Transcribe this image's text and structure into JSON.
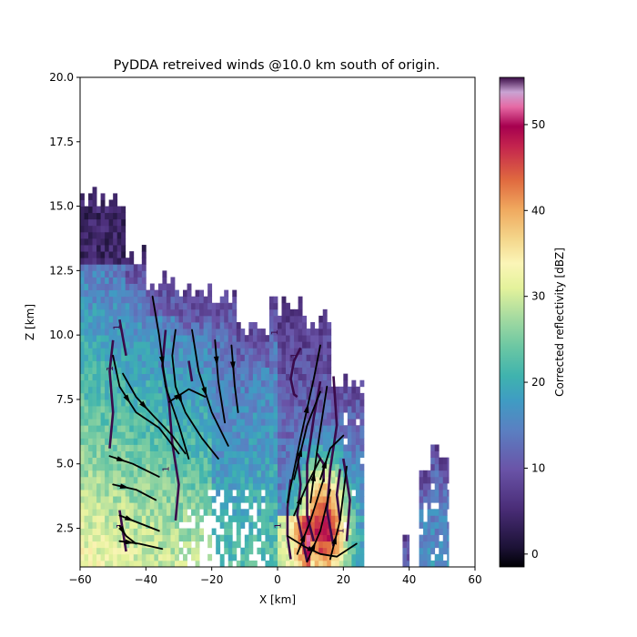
{
  "chart_data": {
    "type": "heatmap",
    "title": "PyDDA retreived winds @10.0 km south of origin.",
    "xlabel": "X [km]",
    "ylabel": "Z [km]",
    "xlim": [
      -60,
      60
    ],
    "ylim": [
      1.0,
      20.0
    ],
    "x_ticks": [
      "−60",
      "−40",
      "−20",
      "0",
      "20",
      "40",
      "60"
    ],
    "y_ticks": [
      "2.5",
      "5.0",
      "7.5",
      "10.0",
      "12.5",
      "15.0",
      "17.5",
      "20.0"
    ],
    "colorbar": {
      "label": "Corrected reflectivity [dBZ]",
      "range": [
        -1.5,
        55.5
      ],
      "ticks": [
        "0",
        "10",
        "20",
        "30",
        "40",
        "50"
      ],
      "colormap": "spectral-reversed"
    },
    "contour_label": "1",
    "echo_columns": [
      {
        "x_range": [
          -60,
          -50
        ],
        "top": 15.2
      },
      {
        "x_range": [
          -50,
          -46
        ],
        "top": 15.2
      },
      {
        "x_range": [
          -46,
          -40
        ],
        "top": 13.0
      },
      {
        "x_range": [
          -40,
          -30
        ],
        "top": 12.0
      },
      {
        "x_range": [
          -30,
          -20
        ],
        "top": 11.5
      },
      {
        "x_range": [
          -20,
          -12
        ],
        "top": 11.3
      },
      {
        "x_range": [
          -12,
          -2
        ],
        "top": 10.2
      },
      {
        "x_range": [
          -2,
          8
        ],
        "top": 11.0
      },
      {
        "x_range": [
          8,
          16
        ],
        "top": 10.6
      },
      {
        "x_range": [
          16,
          26
        ],
        "top": 8.0
      },
      {
        "x_range": [
          38,
          42
        ],
        "top": 2.2
      },
      {
        "x_range": [
          43,
          47
        ],
        "top": 4.6
      },
      {
        "x_range": [
          46,
          52
        ],
        "top": 5.7
      }
    ],
    "streamlines": [
      [
        [
          -51,
          5.3
        ],
        [
          -44,
          5.0
        ],
        [
          -36,
          4.5
        ]
      ],
      [
        [
          -50,
          4.2
        ],
        [
          -43,
          4.0
        ],
        [
          -37,
          3.6
        ]
      ],
      [
        [
          -48,
          3.0
        ],
        [
          -42,
          2.7
        ],
        [
          -36,
          2.4
        ]
      ],
      [
        [
          -48,
          2.0
        ],
        [
          -42,
          1.9
        ],
        [
          -35,
          1.7
        ]
      ],
      [
        [
          -48,
          2.6
        ],
        [
          -46,
          2.2
        ],
        [
          -43,
          1.9
        ]
      ],
      [
        [
          -50,
          9.2
        ],
        [
          -48,
          8.0
        ],
        [
          -43,
          7.0
        ],
        [
          -36,
          6.4
        ],
        [
          -30,
          5.4
        ]
      ],
      [
        [
          -47,
          8.5
        ],
        [
          -43,
          7.6
        ],
        [
          -38,
          6.9
        ],
        [
          -32,
          6.1
        ],
        [
          -28,
          5.4
        ]
      ],
      [
        [
          -38,
          11.5
        ],
        [
          -36,
          10.0
        ],
        [
          -34,
          8.0
        ],
        [
          -30,
          6.5
        ],
        [
          -27,
          5.2
        ]
      ],
      [
        [
          -31,
          10.2
        ],
        [
          -32,
          9.2
        ],
        [
          -31,
          8.0
        ],
        [
          -28,
          7.0
        ],
        [
          -23,
          6.0
        ],
        [
          -18,
          5.2
        ]
      ],
      [
        [
          -26,
          10.2
        ],
        [
          -24,
          8.6
        ],
        [
          -20,
          7.0
        ],
        [
          -15,
          5.7
        ]
      ],
      [
        [
          -19,
          9.8
        ],
        [
          -18,
          8.2
        ],
        [
          -16,
          6.6
        ]
      ],
      [
        [
          -14,
          9.6
        ],
        [
          -13,
          8.0
        ],
        [
          -12,
          7.0
        ]
      ],
      [
        [
          -33,
          7.4
        ],
        [
          -27,
          7.9
        ],
        [
          -22,
          7.6
        ]
      ],
      [
        [
          3,
          3.5
        ],
        [
          7,
          6.0
        ],
        [
          11,
          8.3
        ],
        [
          13,
          9.6
        ]
      ],
      [
        [
          5,
          4.4
        ],
        [
          9,
          6.5
        ],
        [
          13,
          7.8
        ]
      ],
      [
        [
          10,
          3.5
        ],
        [
          12,
          5.5
        ],
        [
          15,
          8.0
        ]
      ],
      [
        [
          5,
          3.0
        ],
        [
          9,
          4.2
        ],
        [
          13,
          5.2
        ]
      ],
      [
        [
          13,
          4.4
        ],
        [
          16,
          5.6
        ],
        [
          20,
          6.1
        ]
      ],
      [
        [
          3,
          2.2
        ],
        [
          8,
          1.8
        ],
        [
          13,
          1.5
        ],
        [
          18,
          1.4
        ],
        [
          24,
          1.9
        ]
      ],
      [
        [
          9,
          1.2
        ],
        [
          13,
          2.4
        ],
        [
          16,
          4.0
        ]
      ],
      [
        [
          6,
          1.5
        ],
        [
          10,
          2.8
        ],
        [
          14,
          4.4
        ]
      ],
      [
        [
          16,
          1.3
        ],
        [
          19,
          2.8
        ],
        [
          21,
          4.9
        ]
      ]
    ],
    "contours": [
      [
        [
          -51,
          5.6
        ],
        [
          -50,
          7.0
        ],
        [
          -51,
          8.6
        ],
        [
          -50,
          9.8
        ]
      ],
      [
        [
          -48,
          10.6
        ],
        [
          -46,
          9.2
        ]
      ],
      [
        [
          -48,
          3.2
        ],
        [
          -47,
          2.4
        ],
        [
          -46,
          1.6
        ]
      ],
      [
        [
          -34,
          10.2
        ],
        [
          -35,
          8.8
        ],
        [
          -33,
          7.4
        ],
        [
          -32,
          5.8
        ],
        [
          -30,
          4.2
        ],
        [
          -31,
          2.8
        ]
      ],
      [
        [
          -27,
          9.0
        ],
        [
          -26,
          8.2
        ]
      ],
      [
        [
          7,
          9.5
        ],
        [
          5,
          9.0
        ],
        [
          4,
          8.3
        ],
        [
          5,
          7.7
        ],
        [
          6,
          7.6
        ]
      ],
      [
        [
          4,
          4.4
        ],
        [
          3,
          3.3
        ],
        [
          3,
          2.2
        ],
        [
          4,
          1.3
        ]
      ],
      [
        [
          6,
          5.4
        ],
        [
          7,
          4.2
        ],
        [
          6,
          3.0
        ],
        [
          8,
          1.8
        ],
        [
          9,
          1.2
        ]
      ],
      [
        [
          13,
          8.2
        ],
        [
          11,
          6.8
        ],
        [
          9,
          5.0
        ],
        [
          9,
          3.0
        ],
        [
          11,
          2.0
        ]
      ],
      [
        [
          17,
          8.4
        ],
        [
          18,
          6.5
        ],
        [
          16,
          4.8
        ],
        [
          15,
          3.2
        ],
        [
          17,
          1.8
        ]
      ],
      [
        [
          20,
          5.2
        ],
        [
          22,
          3.6
        ],
        [
          21,
          2.0
        ]
      ],
      [
        [
          19,
          4.8
        ],
        [
          18,
          3.8
        ],
        [
          19,
          2.8
        ]
      ],
      [
        [
          12,
          5.4
        ],
        [
          14,
          5.0
        ],
        [
          14,
          4.3
        ]
      ]
    ],
    "contour_labels": [
      [
        -50,
        8.7
      ],
      [
        -48,
        10.3
      ],
      [
        -47,
        2.6
      ],
      [
        -33,
        4.8
      ],
      [
        0,
        10.1
      ],
      [
        1,
        2.6
      ],
      [
        6,
        9.2
      ],
      [
        20,
        2.4
      ]
    ]
  }
}
